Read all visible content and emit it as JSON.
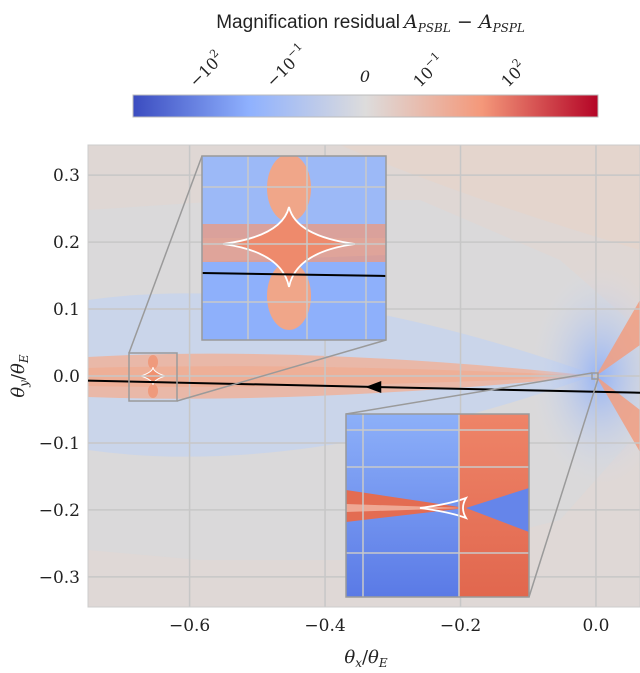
{
  "chart_data": {
    "type": "heatmap",
    "title_text": "Magnification residual ",
    "title_math": "A",
    "title_sub1": "PSBL",
    "title_minus": " − ",
    "title_sub2": "PSPL",
    "colorbar": {
      "scale": "symlog",
      "ticks": [
        {
          "value": -100,
          "base": "−10",
          "exp": "2"
        },
        {
          "value": -0.1,
          "base": "−10",
          "exp": "−1"
        },
        {
          "value": 0,
          "base": "0",
          "exp": ""
        },
        {
          "value": 0.1,
          "base": "10",
          "exp": "−1"
        },
        {
          "value": 100,
          "base": "10",
          "exp": "2"
        }
      ],
      "colors": [
        "#3b4cc0",
        "#8fb1fe",
        "#dddcdc",
        "#f4987a",
        "#b40426"
      ]
    },
    "xlabel_base": "θ",
    "xlabel_sub": "x",
    "xlabel_den_base": "θ",
    "xlabel_den_sub": "E",
    "ylabel_base": "θ",
    "ylabel_sub": "y",
    "ylabel_den_base": "θ",
    "ylabel_den_sub": "E",
    "xlim": [
      -0.75,
      0.065
    ],
    "ylim": [
      -0.345,
      0.345
    ],
    "xticks": [
      -0.6,
      -0.4,
      -0.2,
      0.0
    ],
    "xtick_labels": [
      "−0.6",
      "−0.4",
      "−0.2",
      "0.0"
    ],
    "yticks": [
      0.3,
      0.2,
      0.1,
      0.0,
      -0.1,
      -0.2,
      -0.3
    ],
    "ytick_labels": [
      "0.3",
      "0.2",
      "0.1",
      "0.0",
      "−0.1",
      "−0.2",
      "−0.3"
    ],
    "grid": true,
    "source_trajectory": {
      "x": [
        0.065,
        -0.75
      ],
      "y": [
        -0.025,
        -0.007
      ],
      "arrow_at_x": -0.32
    },
    "lens_position": {
      "x": 0.0,
      "y": 0.0
    },
    "planetary_caustic_center": {
      "x": -0.655,
      "y": 0.0
    },
    "insets": [
      {
        "name": "planetary-caustic-zoom",
        "source_box_x": [
          -0.685,
          -0.625
        ],
        "source_box_y": [
          -0.032,
          0.032
        ]
      },
      {
        "name": "central-caustic-zoom",
        "source_box_x": [
          -0.006,
          0.006
        ],
        "source_box_y": [
          -0.006,
          0.006
        ]
      }
    ]
  }
}
